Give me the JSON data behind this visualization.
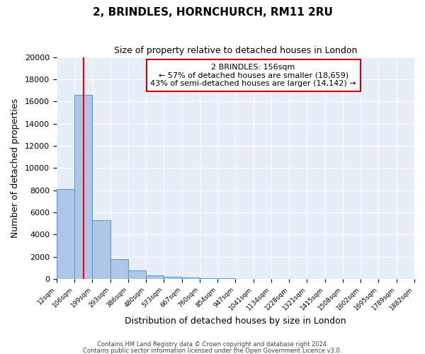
{
  "title": "2, BRINDLES, HORNCHURCH, RM11 2RU",
  "subtitle": "Size of property relative to detached houses in London",
  "xlabel": "Distribution of detached houses by size in London",
  "ylabel": "Number of detached properties",
  "bar_values": [
    8100,
    16600,
    5300,
    1800,
    750,
    300,
    200,
    150,
    100,
    80,
    0,
    0,
    0,
    0,
    0,
    0,
    0,
    0,
    0,
    0
  ],
  "bin_labels": [
    "12sqm",
    "106sqm",
    "199sqm",
    "293sqm",
    "386sqm",
    "480sqm",
    "573sqm",
    "667sqm",
    "760sqm",
    "854sqm",
    "947sqm",
    "1041sqm",
    "1134sqm",
    "1228sqm",
    "1321sqm",
    "1415sqm",
    "1508sqm",
    "1602sqm",
    "1695sqm",
    "1789sqm",
    "1882sqm"
  ],
  "bar_color": "#aec6e8",
  "bar_edge_color": "#5a9fd4",
  "bg_color": "#e8eef8",
  "red_line_x": 1.5,
  "property_name": "2 BRINDLES: 156sqm",
  "annotation_line1": "← 57% of detached houses are smaller (18,659)",
  "annotation_line2": "43% of semi-detached houses are larger (14,142) →",
  "box_color": "white",
  "box_edge_color": "#cc0000",
  "ylim": [
    0,
    20000
  ],
  "yticks": [
    0,
    2000,
    4000,
    6000,
    8000,
    10000,
    12000,
    14000,
    16000,
    18000,
    20000
  ],
  "footer1": "Contains HM Land Registry data © Crown copyright and database right 2024.",
  "footer2": "Contains public sector information licensed under the Open Government Licence v3.0."
}
